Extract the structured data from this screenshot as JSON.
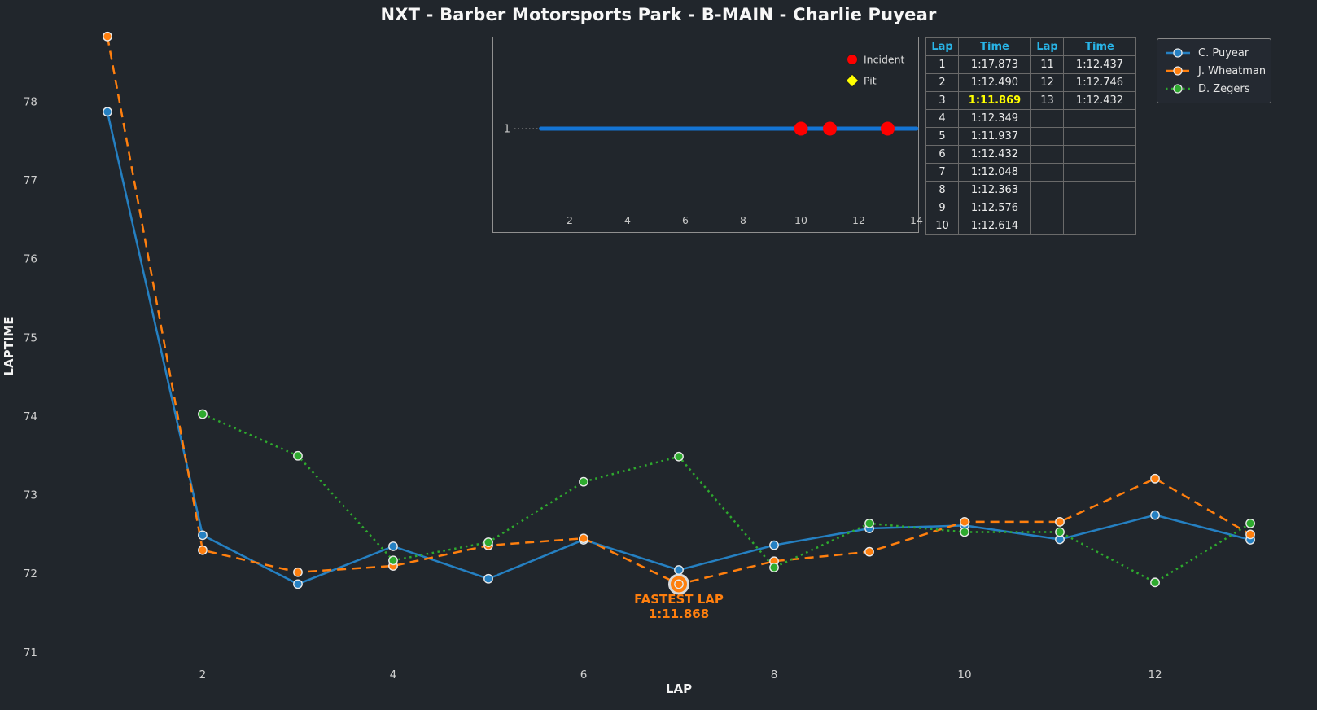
{
  "title": "NXT - Barber Motorsports Park - B-MAIN - Charlie Puyear",
  "colors": {
    "background": "#21262c",
    "text": "#f7f7f7",
    "tick_text": "#cfcfcf",
    "blue": "#2580c2",
    "orange": "#ff7f0e",
    "green": "#2eaa2e",
    "incident_red": "#fe0000",
    "pit_yellow": "#ffff00",
    "table_header_cyan": "#29b5e8",
    "fastest_yellow": "#ffff00",
    "inset_blue": "#1474d4"
  },
  "chart_data": [
    {
      "type": "line",
      "title": "",
      "xlabel": "LAP",
      "ylabel": "LAPTIME",
      "x": [
        1,
        2,
        3,
        4,
        5,
        6,
        7,
        8,
        9,
        10,
        11,
        12,
        13
      ],
      "xticks": [
        2,
        4,
        6,
        8,
        10,
        12
      ],
      "yticks": [
        71,
        72,
        73,
        74,
        75,
        76,
        77,
        78
      ],
      "xlim": [
        0.45,
        13.55
      ],
      "ylim": [
        70.91,
        78.88
      ],
      "grid": false,
      "legend_position": "top-right",
      "series": [
        {
          "name": "C. Puyear",
          "color": "#2580c2",
          "dash": "solid",
          "values": [
            77.873,
            72.49,
            71.869,
            72.349,
            71.937,
            72.432,
            72.048,
            72.363,
            72.576,
            72.614,
            72.437,
            72.746,
            72.432
          ]
        },
        {
          "name": "J. Wheatman",
          "color": "#ff7f0e",
          "dash": "dashed",
          "values": [
            78.83,
            72.3,
            72.02,
            72.1,
            72.36,
            72.45,
            71.868,
            72.16,
            72.28,
            72.66,
            72.66,
            73.21,
            72.5
          ]
        },
        {
          "name": "D. Zegers",
          "color": "#2eaa2e",
          "dash": "dotted",
          "values": [
            null,
            74.03,
            73.5,
            72.17,
            72.4,
            73.17,
            73.49,
            72.08,
            72.64,
            72.53,
            72.53,
            71.89,
            72.64
          ]
        }
      ],
      "annotation": {
        "label": "FASTEST LAP",
        "value": "1:11.868",
        "lap": 7,
        "laptime_sec": 71.868,
        "series": "J. Wheatman"
      }
    },
    {
      "type": "timeline",
      "row_label": "1",
      "line_span": [
        1,
        14
      ],
      "xticks": [
        2,
        4,
        6,
        8,
        10,
        12,
        14
      ],
      "incidents": [
        10,
        11,
        13
      ],
      "pits": [],
      "legend": [
        {
          "label": "Incident",
          "marker": "circle",
          "color": "#fe0000"
        },
        {
          "label": "Pit",
          "marker": "diamond",
          "color": "#ffff00"
        }
      ]
    }
  ],
  "lap_table": {
    "headers": [
      "Lap",
      "Time",
      "Lap",
      "Time"
    ],
    "rows": [
      [
        "1",
        "1:17.873",
        "11",
        "1:12.437"
      ],
      [
        "2",
        "1:12.490",
        "12",
        "1:12.746"
      ],
      [
        "3",
        "1:11.869",
        "13",
        "1:12.432"
      ],
      [
        "4",
        "1:12.349",
        "",
        ""
      ],
      [
        "5",
        "1:11.937",
        "",
        ""
      ],
      [
        "6",
        "1:12.432",
        "",
        ""
      ],
      [
        "7",
        "1:12.048",
        "",
        ""
      ],
      [
        "8",
        "1:12.363",
        "",
        ""
      ],
      [
        "9",
        "1:12.576",
        "",
        ""
      ],
      [
        "10",
        "1:12.614",
        "",
        ""
      ]
    ],
    "fastest_cell": {
      "row": 2,
      "col": 1
    }
  },
  "legend": {
    "items": [
      {
        "label": "C. Puyear",
        "color": "#2580c2",
        "dash": "solid"
      },
      {
        "label": "J. Wheatman",
        "color": "#ff7f0e",
        "dash": "dashed"
      },
      {
        "label": "D. Zegers",
        "color": "#2eaa2e",
        "dash": "dotted"
      }
    ]
  }
}
